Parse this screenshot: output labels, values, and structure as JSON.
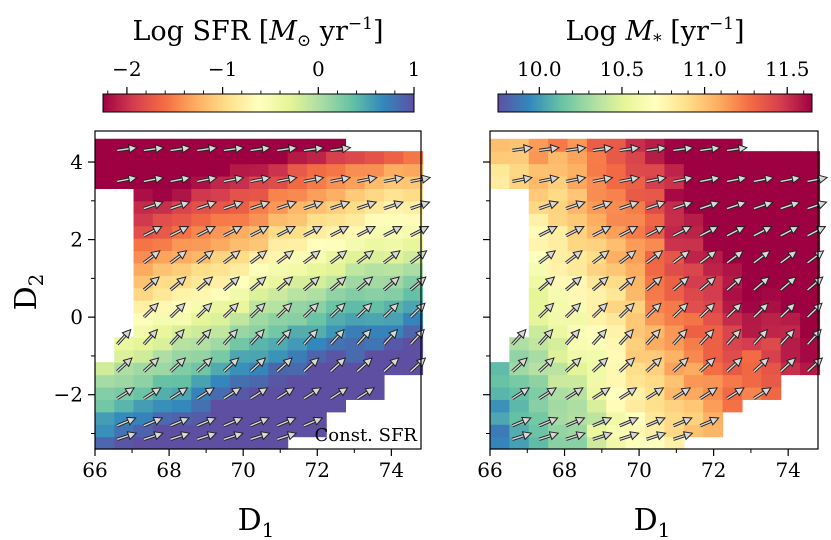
{
  "chart_data": [
    {
      "type": "heatmap",
      "panel": "left",
      "colorbar_label_text": "Log SFR [",
      "colorbar_label_sym": "M",
      "colorbar_label_sub": "⊙",
      "colorbar_label_unit": " yr",
      "colorbar_label_exp": "−1",
      "colorbar_label_close": "]",
      "colorbar_range": [
        -2.25,
        1.0
      ],
      "colorbar_ticks": [
        "−2",
        "−1",
        "0",
        "1"
      ],
      "colorbar_tick_values": [
        -2,
        -1,
        0,
        1
      ],
      "colormap": "Spectral",
      "colormap_reversed": false,
      "xlabel_main": "D",
      "xlabel_sub": "1",
      "ylabel_main": "D",
      "ylabel_sub": "2",
      "xlim": [
        66,
        74.8
      ],
      "ylim": [
        -3.4,
        4.8
      ],
      "xticks": [
        "66",
        "68",
        "70",
        "72",
        "74"
      ],
      "xtick_values": [
        66,
        68,
        70,
        72,
        74
      ],
      "yticks": [
        "−2",
        "0",
        "2",
        "4"
      ],
      "ytick_values": [
        -2,
        0,
        2,
        4
      ],
      "annotation": "Const. SFR",
      "annotation_position": "bottom-right",
      "arrow_field": "vectors at grid points; direction rotates from near-horizontal at top to ~45° in middle, flattening at bottom",
      "summary": "Log SFR is highest (~1) at lower-right (D1≈74, D2≈-1) and lowest (~-2.2) at upper-left (D1≈67, D2≈4.5)"
    },
    {
      "type": "heatmap",
      "panel": "right",
      "colorbar_label_text": "Log ",
      "colorbar_label_sym": "M",
      "colorbar_label_sub": "*",
      "colorbar_label_unit": " [yr",
      "colorbar_label_exp": "−1",
      "colorbar_label_close": "]",
      "colorbar_range": [
        9.75,
        11.65
      ],
      "colorbar_ticks": [
        "10.0",
        "10.5",
        "11.0",
        "11.5"
      ],
      "colorbar_tick_values": [
        10.0,
        10.5,
        11.0,
        11.5
      ],
      "colormap": "Spectral",
      "colormap_reversed": true,
      "xlabel_main": "D",
      "xlabel_sub": "1",
      "xlim": [
        66,
        74.8
      ],
      "ylim": [
        -3.4,
        4.8
      ],
      "xticks": [
        "66",
        "68",
        "70",
        "72",
        "74"
      ],
      "xtick_values": [
        66,
        68,
        70,
        72,
        74
      ],
      "summary": "Log M* increases toward upper-right (~11.6 at D1≈74.5, D2≈3) and decreases toward lower-left (~9.8 at D1≈66.5, D2≈-3)"
    }
  ]
}
